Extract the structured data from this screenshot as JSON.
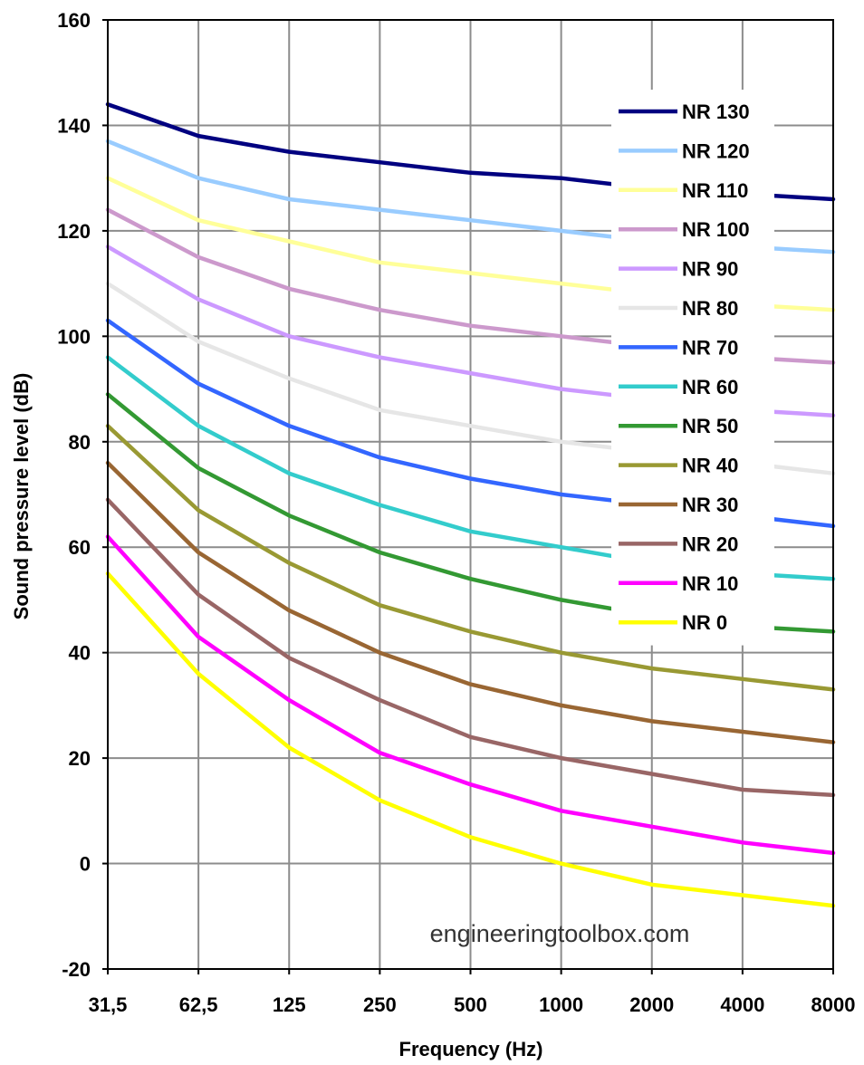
{
  "chart_data": {
    "type": "line",
    "title": "",
    "xlabel": "Frequency (Hz)",
    "ylabel": "Sound pressure level (dB)",
    "categories": [
      "31,5",
      "62,5",
      "125",
      "250",
      "500",
      "1000",
      "2000",
      "4000",
      "8000"
    ],
    "ylim": [
      -20,
      160
    ],
    "yticks": [
      "-20",
      "0",
      "20",
      "40",
      "60",
      "80",
      "100",
      "120",
      "140",
      "160"
    ],
    "grid": true,
    "legend_position": "top-right",
    "annotation": "engineeringtoolbox.com",
    "series": [
      {
        "name": "NR 130",
        "color": "#000080",
        "values": [
          144,
          138,
          135,
          133,
          131,
          130,
          128,
          127,
          126
        ]
      },
      {
        "name": "NR 120",
        "color": "#99ccff",
        "values": [
          137,
          130,
          126,
          124,
          122,
          120,
          118,
          117,
          116
        ]
      },
      {
        "name": "NR 110",
        "color": "#ffff99",
        "values": [
          130,
          122,
          118,
          114,
          112,
          110,
          108,
          106,
          105
        ]
      },
      {
        "name": "NR 100",
        "color": "#cc99cc",
        "values": [
          124,
          115,
          109,
          105,
          102,
          100,
          98,
          96,
          95
        ]
      },
      {
        "name": "NR 90",
        "color": "#cc99ff",
        "values": [
          117,
          107,
          100,
          96,
          93,
          90,
          88,
          86,
          85
        ]
      },
      {
        "name": "NR 80",
        "color": "#e6e6e6",
        "values": [
          110,
          99,
          92,
          86,
          83,
          80,
          78,
          76,
          74
        ]
      },
      {
        "name": "NR 70",
        "color": "#3366ff",
        "values": [
          103,
          91,
          83,
          77,
          73,
          70,
          68,
          66,
          64
        ]
      },
      {
        "name": "NR 60",
        "color": "#33cccc",
        "values": [
          96,
          83,
          74,
          68,
          63,
          60,
          57,
          55,
          54
        ]
      },
      {
        "name": "NR 50",
        "color": "#339933",
        "values": [
          89,
          75,
          66,
          59,
          54,
          50,
          47,
          45,
          44
        ]
      },
      {
        "name": "NR 40",
        "color": "#999933",
        "values": [
          83,
          67,
          57,
          49,
          44,
          40,
          37,
          35,
          33
        ]
      },
      {
        "name": "NR 30",
        "color": "#996633",
        "values": [
          76,
          59,
          48,
          40,
          34,
          30,
          27,
          25,
          23
        ]
      },
      {
        "name": "NR 20",
        "color": "#996666",
        "values": [
          69,
          51,
          39,
          31,
          24,
          20,
          17,
          14,
          13
        ]
      },
      {
        "name": "NR 10",
        "color": "#ff00ff",
        "values": [
          62,
          43,
          31,
          21,
          15,
          10,
          7,
          4,
          2
        ]
      },
      {
        "name": "NR 0",
        "color": "#ffff00",
        "values": [
          55,
          36,
          22,
          12,
          5,
          0,
          -4,
          -6,
          -8
        ]
      }
    ]
  }
}
